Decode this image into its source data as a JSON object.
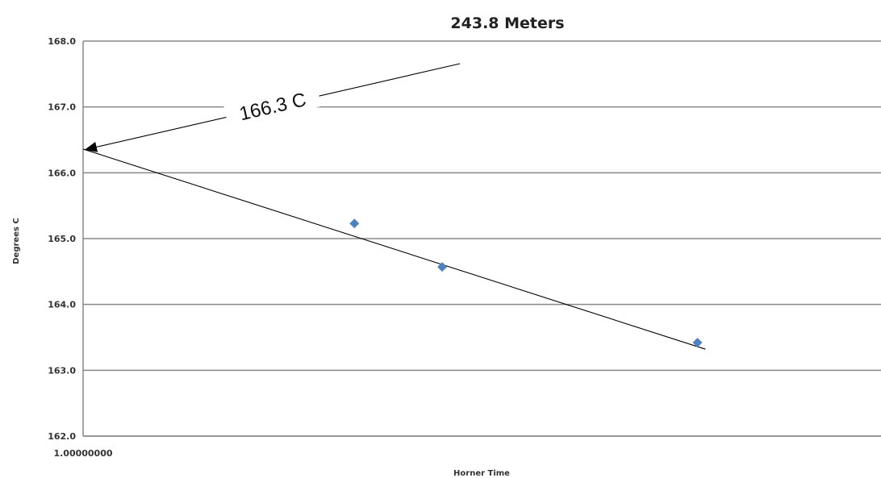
{
  "chart_data": {
    "type": "scatter",
    "title": "243.8 Meters",
    "xlabel": "Horner Time",
    "ylabel": "Degrees C",
    "x_scale": "log",
    "x_tick_labels": [
      "1.00000000"
    ],
    "y_tick_labels": [
      "168.0",
      "167.0",
      "166.0",
      "165.0",
      "164.0",
      "163.0",
      "162.0"
    ],
    "ylim": [
      162.0,
      168.0
    ],
    "grid": true,
    "points": [
      {
        "x": 0.34,
        "y": 165.23
      },
      {
        "x": 0.45,
        "y": 164.57
      },
      {
        "x": 0.77,
        "y": 163.42
      }
    ],
    "trendline": {
      "x": [
        0.0,
        0.78
      ],
      "y": [
        166.36,
        163.32
      ]
    },
    "annotation": {
      "text": "166.3 C",
      "target_y": 166.35
    },
    "colors": {
      "marker": "#4f81bd",
      "grid": "#888888",
      "line": "#000000"
    }
  }
}
